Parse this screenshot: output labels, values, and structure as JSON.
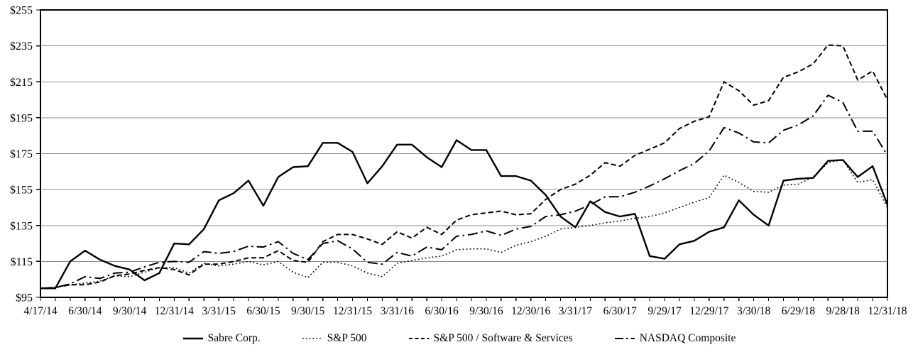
{
  "figure": {
    "background": "#ffffff",
    "line_color": "#000000",
    "grid_color": "#8c8c8c",
    "axis_color": "#000000"
  },
  "chart_data": {
    "type": "line",
    "title": "",
    "xlabel": "",
    "ylabel": "",
    "ylim": [
      95,
      255
    ],
    "y_step": 20,
    "grid": "horizontal",
    "legend_position": "bottom-center",
    "y_tick_labels": [
      "$95",
      "$115",
      "$135",
      "$155",
      "$175",
      "$195",
      "$215",
      "$235",
      "$255"
    ],
    "x_label_every": 3,
    "x_axis_labels": [
      "4/17/14",
      "6/30/14",
      "9/30/14",
      "12/31/14",
      "3/31/15",
      "6/30/15",
      "9/30/15",
      "12/31/15",
      "3/31/16",
      "6/30/16",
      "9/30/16",
      "12/30/16",
      "3/31/17",
      "6/30/17",
      "9/29/17",
      "12/29/17",
      "3/30/18",
      "6/29/18",
      "9/28/18",
      "12/31/18"
    ],
    "x_points": [
      "4/17/14",
      "4/30/14",
      "5/30/14",
      "6/30/14",
      "7/31/14",
      "8/29/14",
      "9/30/14",
      "10/31/14",
      "11/28/14",
      "12/31/14",
      "1/30/15",
      "2/27/15",
      "3/31/15",
      "4/30/15",
      "5/29/15",
      "6/30/15",
      "7/31/15",
      "8/31/15",
      "9/30/15",
      "10/30/15",
      "11/30/15",
      "12/31/15",
      "1/29/16",
      "2/29/16",
      "3/31/16",
      "4/29/16",
      "5/31/16",
      "6/30/16",
      "7/29/16",
      "8/31/16",
      "9/30/16",
      "10/31/16",
      "11/30/16",
      "12/30/16",
      "1/31/17",
      "2/28/17",
      "3/31/17",
      "4/28/17",
      "5/31/17",
      "6/30/17",
      "7/31/17",
      "8/31/17",
      "9/29/17",
      "10/31/17",
      "11/30/17",
      "12/29/17",
      "1/31/18",
      "2/28/18",
      "3/30/18",
      "4/30/18",
      "5/31/18",
      "6/29/18",
      "7/31/18",
      "8/31/18",
      "9/28/18",
      "10/31/18",
      "11/30/18",
      "12/31/18"
    ],
    "series": [
      {
        "name": "Sabre Corp.",
        "slug": "sabre-corp",
        "dash": "solid",
        "values": [
          100,
          100,
          115,
          121,
          116,
          112.5,
          110.5,
          104.5,
          108.5,
          125,
          124.5,
          133,
          149,
          153,
          160,
          146,
          162,
          167.5,
          168,
          181,
          181,
          176,
          158.5,
          168,
          180,
          180,
          173,
          167.5,
          182.5,
          177,
          177,
          162.5,
          162.5,
          160,
          152,
          140,
          134,
          148.5,
          142.5,
          140,
          141.5,
          118,
          116.5,
          124.5,
          126.5,
          131.5,
          134,
          149,
          141,
          135,
          160,
          161,
          161.5,
          171,
          171.5,
          162,
          168,
          146.5
        ]
      },
      {
        "name": "S&P 500",
        "slug": "sp-500",
        "dash": "dotted",
        "values": [
          100,
          100.5,
          102,
          103,
          104,
          107,
          106.5,
          109,
          111.5,
          111.5,
          108.5,
          114,
          112.5,
          113.5,
          115,
          113,
          115,
          109,
          106,
          114.5,
          114.5,
          112.5,
          108.5,
          106.5,
          114,
          115.5,
          117,
          118,
          121.5,
          122,
          122,
          120,
          124,
          126,
          129,
          133,
          134,
          135,
          136.5,
          137.5,
          139,
          140,
          142,
          145,
          148,
          150.5,
          163,
          159,
          154,
          153.5,
          157.5,
          158,
          162,
          170,
          171.5,
          159,
          160.5,
          145
        ]
      },
      {
        "name": "S&P 500 / Software & Services",
        "slug": "sp-500-software-services",
        "dash": "dashed",
        "values": [
          100,
          100.5,
          102,
          102,
          103.5,
          107,
          108,
          110,
          111.5,
          110.5,
          107.5,
          113.5,
          113.5,
          115,
          117,
          117,
          121,
          115.5,
          114.5,
          126,
          130,
          130,
          127.5,
          124.5,
          131.5,
          128,
          134,
          130,
          138,
          141,
          142,
          143,
          141,
          141.5,
          149.5,
          155,
          158,
          163,
          170,
          168,
          174,
          177.5,
          181,
          189,
          193,
          195.5,
          215,
          210,
          202,
          204.5,
          217.5,
          220.5,
          225,
          235.5,
          235,
          216,
          221,
          205
        ]
      },
      {
        "name": "NASDAQ Composite",
        "slug": "nasdaq-composite",
        "dash": "dashdot",
        "values": [
          100,
          100.5,
          102.5,
          106.5,
          105.5,
          108.5,
          109,
          112,
          114.5,
          115,
          114.5,
          120.5,
          119.5,
          120.5,
          123.5,
          123,
          126,
          119.5,
          116,
          125,
          126.5,
          122,
          114.5,
          113.5,
          120,
          118,
          123,
          121.5,
          129,
          130,
          132,
          129.5,
          133,
          134.5,
          140,
          141,
          143,
          146.5,
          151,
          151,
          153.5,
          157,
          161,
          165.5,
          169.5,
          176.5,
          189.5,
          186.5,
          181.5,
          181,
          188,
          191,
          196,
          207.5,
          203.5,
          187.5,
          187.5,
          174
        ]
      }
    ]
  }
}
